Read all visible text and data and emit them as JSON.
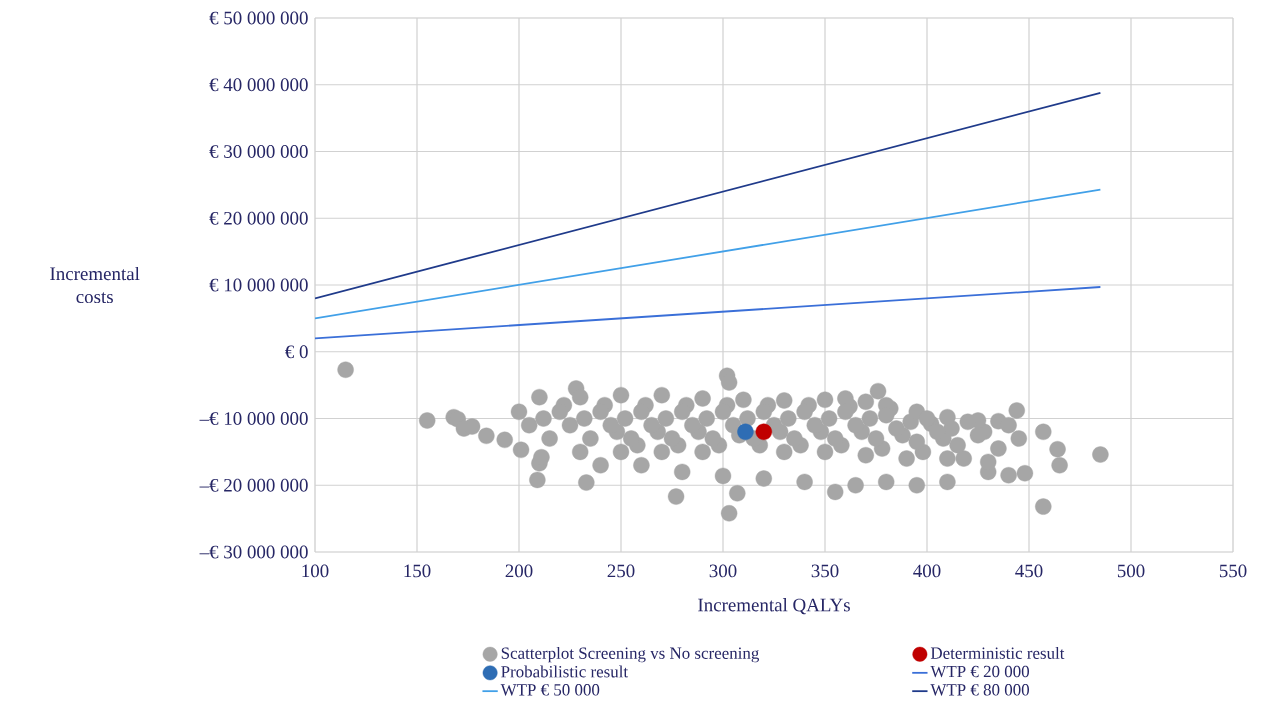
{
  "chart_data": {
    "type": "scatter",
    "xlabel": "Incremental  QALYs",
    "ylabel": "Incremental costs",
    "xlim": [
      100,
      550
    ],
    "xticks": [
      100,
      150,
      200,
      250,
      300,
      350,
      400,
      450,
      500,
      550
    ],
    "ylim": [
      -30000000,
      50000000
    ],
    "yticks": [
      {
        "value": -30000000,
        "label": "–€ 30 000 000"
      },
      {
        "value": -20000000,
        "label": "–€ 20 000 000"
      },
      {
        "value": -10000000,
        "label": "–€ 10 000 000"
      },
      {
        "value": 0,
        "label": "€ 0"
      },
      {
        "value": 10000000,
        "label": "€ 10 000 000"
      },
      {
        "value": 20000000,
        "label": "€ 20 000 000"
      },
      {
        "value": 30000000,
        "label": "€ 30 000 000"
      },
      {
        "value": 40000000,
        "label": "€ 40 000 000"
      },
      {
        "value": 50000000,
        "label": "€ 50 000 000"
      }
    ],
    "grid": true,
    "legend": "bottom",
    "series": [
      {
        "name": "Scatterplot Screening vs No screening",
        "marker": "circle",
        "color": "#a6a6a6",
        "x": [
          222,
          242,
          262,
          282,
          302,
          322,
          342,
          362,
          382,
          402,
          212,
          232,
          252,
          272,
          292,
          312,
          332,
          352,
          372,
          392,
          412,
          428,
          248,
          268,
          288,
          308,
          328,
          348,
          368,
          388,
          408,
          258,
          278,
          298,
          318,
          338,
          358,
          378,
          398,
          418,
          115,
          155,
          168,
          170,
          173,
          177,
          184,
          193,
          201,
          209,
          210,
          211,
          228,
          233,
          277,
          302,
          303,
          307,
          303,
          457,
          457,
          464,
          465,
          485,
          376,
          444,
          210,
          230,
          250,
          270,
          290,
          310,
          330,
          350,
          360,
          370,
          380,
          395,
          410,
          425,
          435,
          240,
          260,
          280,
          300,
          320,
          340,
          355,
          365,
          380,
          395,
          410,
          430,
          440,
          448,
          200,
          220,
          240,
          260,
          280,
          300,
          320,
          340,
          360,
          380,
          400,
          420,
          440,
          205,
          225,
          245,
          265,
          285,
          305,
          325,
          345,
          365,
          385,
          405,
          425,
          445,
          215,
          235,
          255,
          275,
          295,
          315,
          335,
          355,
          375,
          395,
          415,
          435,
          230,
          250,
          270,
          290,
          330,
          350,
          370,
          390,
          410,
          430
        ],
        "values": [
          -8000000,
          -8000000,
          -8000000,
          -8000000,
          -8000000,
          -8000000,
          -8000000,
          -8200000,
          -8500000,
          -10800000,
          -10000000,
          -10000000,
          -10000000,
          -10000000,
          -10000000,
          -10000000,
          -10000000,
          -10000000,
          -10000000,
          -10500000,
          -11500000,
          -12000000,
          -12000000,
          -12000000,
          -12000000,
          -12500000,
          -12000000,
          -12000000,
          -12000000,
          -12500000,
          -13000000,
          -14000000,
          -14000000,
          -14000000,
          -14000000,
          -14000000,
          -14000000,
          -14500000,
          -15000000,
          -16000000,
          -2700000,
          -10300000,
          -9800000,
          -10100000,
          -11500000,
          -11200000,
          -12600000,
          -13200000,
          -14700000,
          -19200000,
          -16700000,
          -15800000,
          -5500000,
          -19600000,
          -21700000,
          -3600000,
          -4600000,
          -21200000,
          -24200000,
          -23200000,
          -12000000,
          -14600000,
          -17000000,
          -15400000,
          -5900000,
          -8800000,
          -6800000,
          -6800000,
          -6500000,
          -6500000,
          -7000000,
          -7200000,
          -7300000,
          -7200000,
          -7000000,
          -7500000,
          -8000000,
          -9000000,
          -9800000,
          -10300000,
          -10400000,
          -17000000,
          -17000000,
          -18000000,
          -18600000,
          -19000000,
          -19500000,
          -21000000,
          -20000000,
          -19500000,
          -20000000,
          -19500000,
          -18000000,
          -18500000,
          -18200000,
          -9000000,
          -9000000,
          -9000000,
          -9000000,
          -9000000,
          -9000000,
          -9000000,
          -9000000,
          -9000000,
          -9500000,
          -10000000,
          -10500000,
          -11000000,
          -11000000,
          -11000000,
          -11000000,
          -11000000,
          -11000000,
          -11000000,
          -11000000,
          -11000000,
          -11000000,
          -11500000,
          -12000000,
          -12500000,
          -13000000,
          -13000000,
          -13000000,
          -13000000,
          -13000000,
          -13000000,
          -13000000,
          -13000000,
          -13000000,
          -13000000,
          -13500000,
          -14000000,
          -14500000,
          -15000000,
          -15000000,
          -15000000,
          -15000000,
          -15000000,
          -15000000,
          -15500000,
          -16000000,
          -16000000,
          -16500000
        ]
      },
      {
        "name": "Deterministic result",
        "marker": "circle",
        "color": "#c00000",
        "x": [
          320
        ],
        "values": [
          -12000000
        ]
      },
      {
        "name": "Probabilistic result",
        "marker": "circle",
        "color": "#2e6db4",
        "x": [
          311
        ],
        "values": [
          -12000000
        ]
      },
      {
        "name": "WTP € 20 000",
        "type": "line",
        "marker": "none",
        "color": "#3a6fd8",
        "x": [
          100,
          485
        ],
        "values": [
          2000000,
          9700000
        ]
      },
      {
        "name": "WTP € 50 000",
        "type": "line",
        "marker": "none",
        "color": "#41a0e8",
        "x": [
          100,
          485
        ],
        "values": [
          5000000,
          24300000
        ]
      },
      {
        "name": "WTP € 80 000",
        "type": "line",
        "marker": "none",
        "color": "#1f3a8a",
        "x": [
          100,
          485
        ],
        "values": [
          8000000,
          38800000
        ]
      }
    ]
  }
}
